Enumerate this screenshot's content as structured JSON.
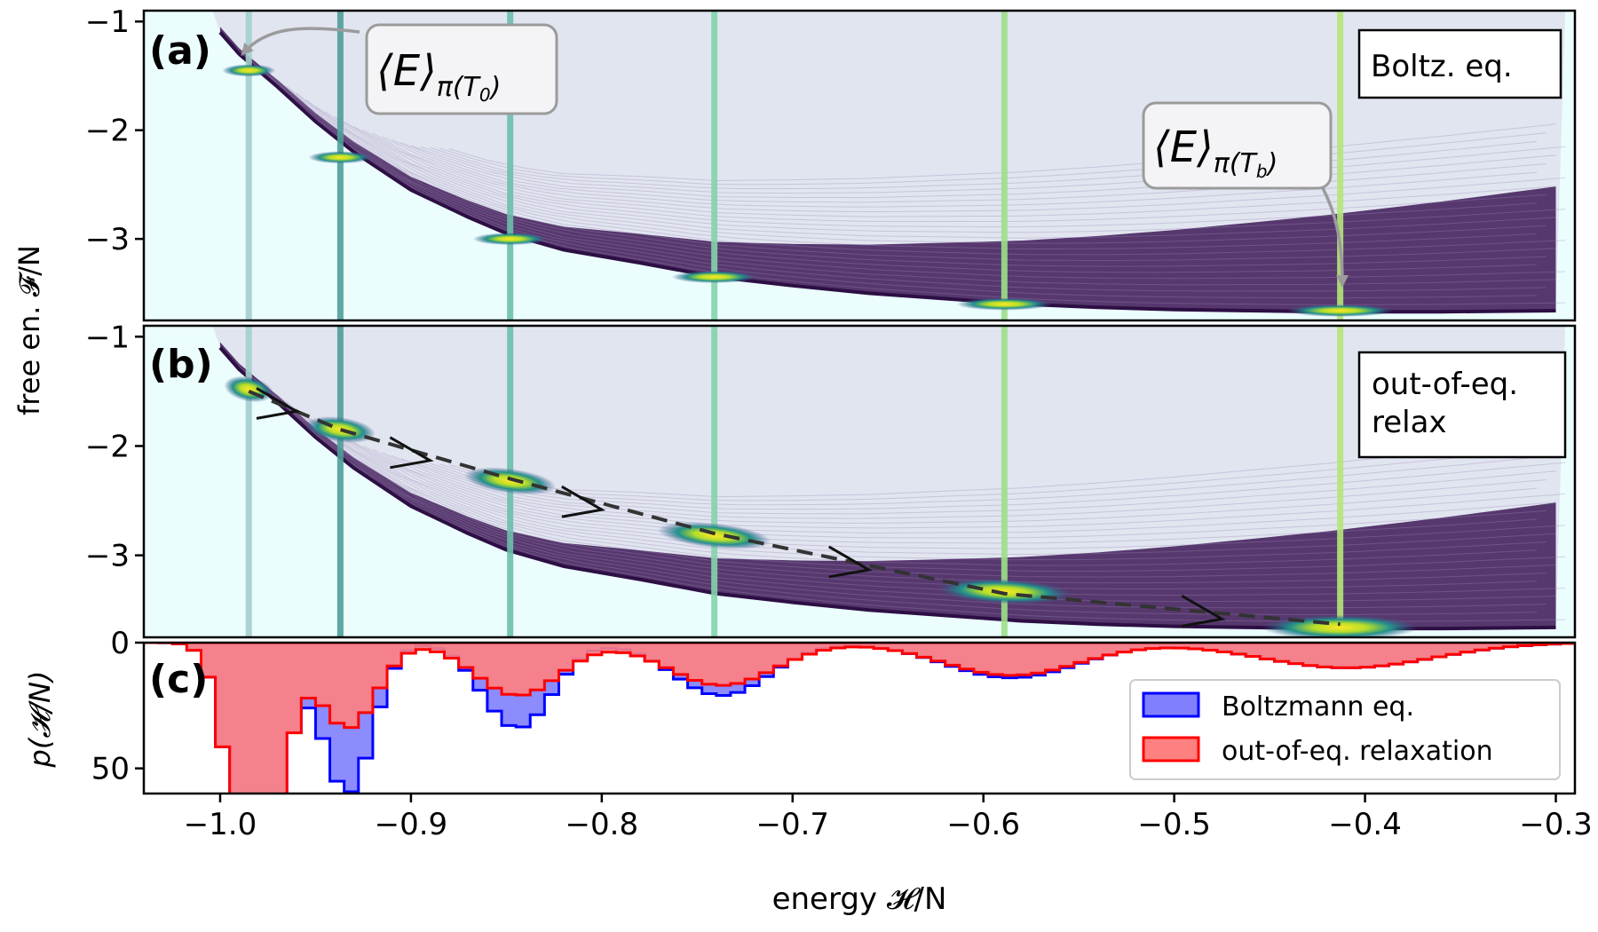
{
  "chart_data": [
    {
      "panel_label": "(a)",
      "type": "scatter",
      "legend_box": "Boltz. eq.",
      "ylabel": "free en. 𝓕/N",
      "xlim": [
        -1.04,
        -0.29
      ],
      "ylim": [
        -3.75,
        -0.9
      ],
      "yticks": [
        -1,
        -2,
        -3
      ],
      "ytick_labels": [
        "−1",
        "−2",
        "−3"
      ],
      "background": "#ebfdfd",
      "fan_color": "#3e1a57",
      "marker_lines": [
        {
          "x": -0.985,
          "color": "#a3d0cd"
        },
        {
          "x": -0.937,
          "color": "#4f9f9a"
        },
        {
          "x": -0.848,
          "color": "#6dbfad"
        },
        {
          "x": -0.741,
          "color": "#85d4ac"
        },
        {
          "x": -0.589,
          "color": "#9ee08b"
        },
        {
          "x": -0.413,
          "color": "#b6e67a"
        }
      ],
      "equilibrium_curve": [
        [
          -1.0,
          -1.1
        ],
        [
          -0.99,
          -1.3
        ],
        [
          -0.97,
          -1.6
        ],
        [
          -0.95,
          -1.92
        ],
        [
          -0.93,
          -2.2
        ],
        [
          -0.9,
          -2.55
        ],
        [
          -0.87,
          -2.8
        ],
        [
          -0.85,
          -2.95
        ],
        [
          -0.82,
          -3.1
        ],
        [
          -0.78,
          -3.22
        ],
        [
          -0.74,
          -3.35
        ],
        [
          -0.7,
          -3.43
        ],
        [
          -0.66,
          -3.5
        ],
        [
          -0.62,
          -3.55
        ],
        [
          -0.58,
          -3.6
        ],
        [
          -0.54,
          -3.63
        ],
        [
          -0.5,
          -3.65
        ],
        [
          -0.46,
          -3.66
        ],
        [
          -0.42,
          -3.67
        ],
        [
          -0.36,
          -3.67
        ],
        [
          -0.3,
          -3.66
        ]
      ],
      "hotspots": [
        {
          "x": -0.985,
          "y": -1.45
        },
        {
          "x": -0.937,
          "y": -2.25
        },
        {
          "x": -0.848,
          "y": -3.0
        },
        {
          "x": -0.741,
          "y": -3.35
        },
        {
          "x": -0.589,
          "y": -3.6
        },
        {
          "x": -0.413,
          "y": -3.66
        }
      ],
      "annotations": [
        {
          "text_main": "⟨E⟩",
          "text_sub": "π(T",
          "text_subsub": "0",
          "text_close": ")",
          "points_to": [
            -0.99,
            -1.18
          ]
        },
        {
          "text_main": "⟨E⟩",
          "text_sub": "π(T",
          "text_subsub": "b",
          "text_close": ")",
          "points_to": [
            -0.413,
            -3.63
          ]
        }
      ]
    },
    {
      "panel_label": "(b)",
      "type": "scatter",
      "legend_box_line1": "out-of-eq.",
      "legend_box_line2": "relax",
      "xlim": [
        -1.04,
        -0.29
      ],
      "ylim": [
        -3.75,
        -0.9
      ],
      "yticks": [
        -1,
        -2,
        -3
      ],
      "ytick_labels": [
        "−1",
        "−2",
        "−3"
      ],
      "trajectory": [
        [
          -0.985,
          -1.5
        ],
        [
          -0.937,
          -1.85
        ],
        [
          -0.848,
          -2.3
        ],
        [
          -0.741,
          -2.8
        ],
        [
          -0.589,
          -3.35
        ],
        [
          -0.413,
          -3.63
        ]
      ],
      "trajectory_arrows": [
        [
          -0.96,
          -1.65
        ],
        [
          -0.89,
          -2.1
        ],
        [
          -0.8,
          -2.55
        ],
        [
          -0.66,
          -3.1
        ],
        [
          -0.475,
          -3.55
        ]
      ],
      "blobs": [
        {
          "x": -0.985,
          "y": -1.48
        },
        {
          "x": -0.937,
          "y": -1.85
        },
        {
          "x": -0.848,
          "y": -2.32
        },
        {
          "x": -0.741,
          "y": -2.82
        },
        {
          "x": -0.589,
          "y": -3.33
        },
        {
          "x": -0.413,
          "y": -3.66
        }
      ]
    },
    {
      "panel_label": "(c)",
      "type": "bar",
      "ylabel": "p(𝓗/N)",
      "xlabel": "energy 𝓗/N",
      "xlim": [
        -1.04,
        -0.29
      ],
      "ylim": [
        0,
        60
      ],
      "yticks": [
        0,
        50
      ],
      "ytick_labels": [
        "0",
        "50"
      ],
      "xticks": [
        -1.0,
        -0.9,
        -0.8,
        -0.7,
        -0.6,
        -0.5,
        -0.4,
        -0.3
      ],
      "xtick_labels": [
        "−1.0",
        "−0.9",
        "−0.8",
        "−0.7",
        "−0.6",
        "−0.5",
        "−0.4",
        "−0.3"
      ],
      "legend_position": "lower-right",
      "series": [
        {
          "name": "Boltzmann eq.",
          "fill": "#8080ff",
          "stroke": "#0000ff",
          "peaks": [
            {
              "center": -0.985,
              "height": 120,
              "width": 0.012
            },
            {
              "center": -0.937,
              "height": 60,
              "width": 0.013
            },
            {
              "center": -0.848,
              "height": 34,
              "width": 0.018
            },
            {
              "center": -0.741,
              "height": 21,
              "width": 0.025
            },
            {
              "center": -0.589,
              "height": 14,
              "width": 0.035
            },
            {
              "center": -0.413,
              "height": 10,
              "width": 0.045
            }
          ]
        },
        {
          "name": "out-of-eq. relaxation",
          "fill": "#ff8080",
          "stroke": "#ff0000",
          "peaks": [
            {
              "center": -0.985,
              "height": 120,
              "width": 0.012
            },
            {
              "center": -0.937,
              "height": 34,
              "width": 0.015
            },
            {
              "center": -0.848,
              "height": 21,
              "width": 0.022
            },
            {
              "center": -0.741,
              "height": 17,
              "width": 0.028
            },
            {
              "center": -0.589,
              "height": 13,
              "width": 0.036
            },
            {
              "center": -0.413,
              "height": 10,
              "width": 0.045
            }
          ]
        }
      ]
    }
  ]
}
